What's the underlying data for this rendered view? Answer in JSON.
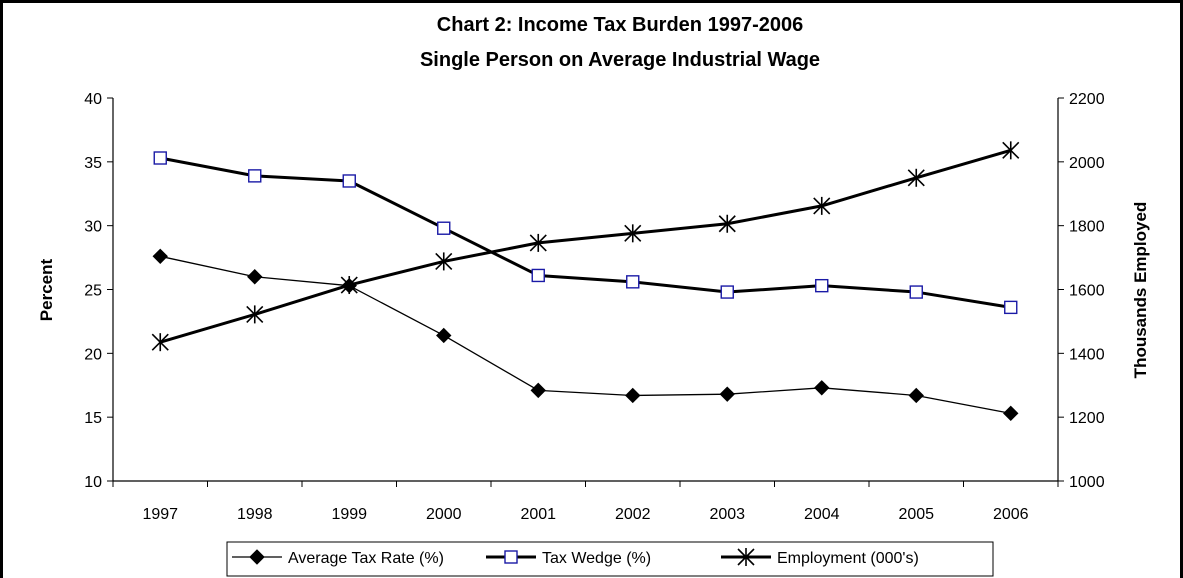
{
  "chart_data": {
    "type": "line",
    "title": "Chart 2: Income Tax Burden 1997-2006",
    "subtitle": "Single Person on Average Industrial Wage",
    "categories": [
      "1997",
      "1998",
      "1999",
      "2000",
      "2001",
      "2002",
      "2003",
      "2004",
      "2005",
      "2006"
    ],
    "ylabel": "Percent",
    "ylim": [
      10,
      40
    ],
    "yticks": [
      "10",
      "15",
      "20",
      "25",
      "30",
      "35",
      "40"
    ],
    "y2label": "Thousands Employed",
    "y2lim": [
      1000,
      2200
    ],
    "y2ticks": [
      "1000",
      "1200",
      "1400",
      "1600",
      "1800",
      "2000",
      "2200"
    ],
    "legend_position": "bottom",
    "grid": false,
    "series": [
      {
        "name": "Average Tax Rate (%)",
        "axis": "left",
        "marker": "diamond",
        "color": "#000000",
        "values": [
          27.6,
          26.0,
          25.3,
          21.4,
          17.1,
          16.7,
          16.8,
          17.3,
          16.7,
          15.3
        ]
      },
      {
        "name": "Tax Wedge (%)",
        "axis": "left",
        "marker": "square-open",
        "color": "#000000",
        "marker_color": "#1a1aa6",
        "values": [
          35.3,
          33.9,
          33.5,
          29.8,
          26.1,
          25.6,
          24.8,
          25.3,
          24.8,
          23.6
        ]
      },
      {
        "name": "Employment (000's)",
        "axis": "right",
        "marker": "star",
        "color": "#000000",
        "values": [
          1435,
          1522,
          1614,
          1688,
          1746,
          1776,
          1806,
          1862,
          1950,
          2036
        ]
      }
    ]
  }
}
